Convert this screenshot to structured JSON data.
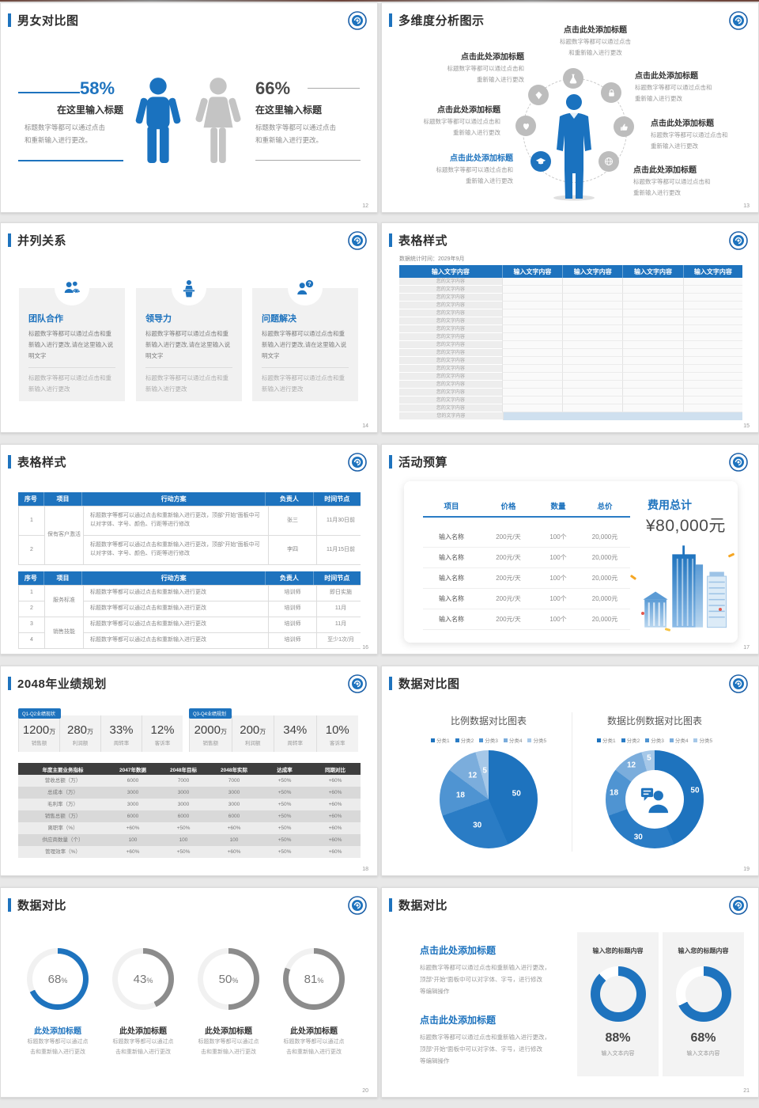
{
  "app": {
    "background": "#e8e8e8",
    "accent": "#1e73be"
  },
  "slides": {
    "gender": {
      "title": "男女对比图",
      "page": "12",
      "male": {
        "pct": "58%",
        "subtitle": "在这里输入标题",
        "body1": "标题数字等都可以通过点击",
        "body2": "和重新输入进行更改。"
      },
      "female": {
        "pct": "66%",
        "subtitle": "在这里输入标题",
        "body1": "标题数字等都可以通过点击",
        "body2": "和重新输入进行更改。"
      }
    },
    "multiDim": {
      "title": "多维度分析图示",
      "page": "13",
      "item_title": "点击此处添加标题",
      "top_body1": "标题数字等都可以通过点击",
      "top_body2": "和重新输入进行更改",
      "side_body1": "标题数字等都可以通过点击和",
      "side_body2": "重新输入进行更改"
    },
    "parallel": {
      "title": "并列关系",
      "page": "14",
      "cards": [
        {
          "name": "团队合作",
          "body": "标题数字等都可以通过点击和重新输入进行更改,请在这里输入说明文字",
          "note": "标题数字等都可以通过点击和重新输入进行更改"
        },
        {
          "name": "领导力",
          "body": "标题数字等都可以通过点击和重新输入进行更改,请在这里输入说明文字",
          "note": "标题数字等都可以通过点击和重新输入进行更改"
        },
        {
          "name": "问题解决",
          "body": "标题数字等都可以通过点击和重新输入进行更改,请在这里输入说明文字",
          "note": "标题数字等都可以通过点击和重新输入进行更改"
        }
      ]
    },
    "tableStyle15": {
      "title": "表格样式",
      "page": "15",
      "subtitle": "数据统计时间：2029年9月",
      "col_header": "输入文字内容",
      "cell_text": "您的文字内容",
      "plain_row_count": 17
    },
    "tableStyle16": {
      "title": "表格样式",
      "page": "16",
      "headers": [
        "序号",
        "项目",
        "行动方案",
        "负责人",
        "时间节点"
      ],
      "t1": {
        "project": "保有客户激活",
        "action": "标题数字等都可以通过点击和重新输入进行更改，顶部“开始”面板中可以对字体、字号、颜色、行距等进行修改",
        "rows": [
          {
            "no": "1",
            "owner": "张三",
            "time": "11月30日前"
          },
          {
            "no": "2",
            "owner": "李四",
            "time": "11月15日前"
          }
        ]
      },
      "t2": {
        "action": "标题数字等都可以通过点击和重新输入进行更改",
        "group1": "服务标准",
        "group2": "销售技能",
        "rows": [
          {
            "no": "1",
            "owner": "培训师",
            "time": "即日实施"
          },
          {
            "no": "2",
            "owner": "培训师",
            "time": "11月"
          },
          {
            "no": "3",
            "owner": "培训师",
            "time": "11月"
          },
          {
            "no": "4",
            "owner": "培训师",
            "time": "至少1次/月"
          }
        ]
      }
    },
    "budget": {
      "title": "活动预算",
      "page": "17",
      "headers": [
        "项目",
        "价格",
        "数量",
        "总价"
      ],
      "row": {
        "name": "输入名称",
        "price": "200元/天",
        "qty": "100个",
        "total": "20,000元"
      },
      "row_count": 5,
      "total_label": "费用总计",
      "total_value": "¥80,000元"
    },
    "plan2048": {
      "title": "2048年业绩规划",
      "page": "18",
      "groups": [
        {
          "tag": "Q1-Q2业绩现状",
          "stats": [
            {
              "v": "1200",
              "u": "万",
              "l": "销售额"
            },
            {
              "v": "280",
              "u": "万",
              "l": "利润额"
            },
            {
              "v": "33%",
              "u": "",
              "l": "周转率"
            },
            {
              "v": "12%",
              "u": "",
              "l": "客诉率"
            }
          ]
        },
        {
          "tag": "Q3-Q4业绩规划",
          "stats": [
            {
              "v": "2000",
              "u": "万",
              "l": "销售额"
            },
            {
              "v": "200",
              "u": "万",
              "l": "利润额"
            },
            {
              "v": "34%",
              "u": "",
              "l": "周转率"
            },
            {
              "v": "10%",
              "u": "",
              "l": "客诉率"
            }
          ]
        }
      ],
      "table": {
        "headers": [
          "年度主要业务指标",
          "2047年数据",
          "2048年目标",
          "2048年实际",
          "达成率",
          "同期对比"
        ],
        "rows": [
          [
            "营收总额（万）",
            "6000",
            "7000",
            "7000",
            "+50%",
            "+60%"
          ],
          [
            "总成本（万）",
            "3000",
            "3000",
            "3000",
            "+50%",
            "+60%"
          ],
          [
            "毛利率（万）",
            "3000",
            "3000",
            "3000",
            "+50%",
            "+60%"
          ],
          [
            "销售总额（万）",
            "6000",
            "6000",
            "6000",
            "+50%",
            "+60%"
          ],
          [
            "离职率（%）",
            "+60%",
            "+50%",
            "+60%",
            "+50%",
            "+60%"
          ],
          [
            "供应商数量（个）",
            "100",
            "100",
            "100",
            "+50%",
            "+60%"
          ],
          [
            "管理效率（%）",
            "+60%",
            "+50%",
            "+60%",
            "+50%",
            "+60%"
          ]
        ]
      }
    },
    "dataChart": {
      "title": "数据对比图",
      "page": "19"
    },
    "dataCompare20": {
      "title": "数据对比",
      "page": "20",
      "pct_symbol": "%",
      "items": [
        {
          "v": "68",
          "label": "此处添加标题",
          "body1": "标题数字等都可以通过点",
          "body2": "击和重新输入进行更改"
        },
        {
          "v": "43",
          "label": "此处添加标题",
          "body1": "标题数字等都可以通过点",
          "body2": "击和重新输入进行更改"
        },
        {
          "v": "50",
          "label": "此处添加标题",
          "body1": "标题数字等都可以通过点",
          "body2": "击和重新输入进行更改"
        },
        {
          "v": "81",
          "label": "此处添加标题",
          "body1": "标题数字等都可以通过点",
          "body2": "击和重新输入进行更改"
        }
      ]
    },
    "dataCompare21": {
      "title": "数据对比",
      "page": "21",
      "blocks": [
        {
          "title": "点击此处添加标题",
          "body1": "标题数字等都可以通过点击和重新输入进行更改，",
          "body2": "顶部“开始”面板中可以对字体、字号，进行修改",
          "body3": "等编辑操作"
        },
        {
          "title": "点击此处添加标题",
          "body1": "标题数字等都可以通过点击和重新输入进行更改，",
          "body2": "顶部“开始”面板中可以对字体、字号，进行修改",
          "body3": "等编辑操作"
        }
      ],
      "cards": [
        {
          "header": "输入您的标题内容",
          "pct": "88%",
          "caption": "输入文本内容"
        },
        {
          "header": "输入您的标题内容",
          "pct": "68%",
          "caption": "输入文本内容"
        }
      ]
    }
  },
  "chart_data": [
    {
      "type": "pie",
      "title": "比例数据对比图表",
      "categories": [
        "分类1",
        "分类2",
        "分类3",
        "分类4",
        "分类5"
      ],
      "values": [
        50,
        30,
        18,
        12,
        5
      ],
      "colors": [
        "#1e73be",
        "#2a7cc5",
        "#4f94d2",
        "#7baddc",
        "#a6c8e8"
      ],
      "legend_position": "top",
      "labels": "values-on-slices"
    },
    {
      "type": "donut",
      "title": "数据比例数据对比图表",
      "categories": [
        "分类1",
        "分类2",
        "分类3",
        "分类4",
        "分类5"
      ],
      "values": [
        50,
        30,
        18,
        12,
        5
      ],
      "colors": [
        "#1e73be",
        "#2a7cc5",
        "#4f94d2",
        "#7baddc",
        "#a6c8e8"
      ],
      "legend_position": "top",
      "labels": "values-on-ring",
      "center": "person-icon"
    },
    {
      "type": "donut",
      "title": "进度环-数据对比-第20页",
      "values": [
        68,
        43,
        50,
        81
      ],
      "colors": [
        "#1e73be",
        "#8c8c8c",
        "#8c8c8c",
        "#8c8c8c"
      ],
      "rest_color": "#f1f1f1"
    },
    {
      "type": "donut",
      "title": "进度环-数据对比-第21页",
      "values": [
        88,
        68
      ],
      "color": "#1e73be",
      "rest_color": "#ffffff"
    }
  ]
}
